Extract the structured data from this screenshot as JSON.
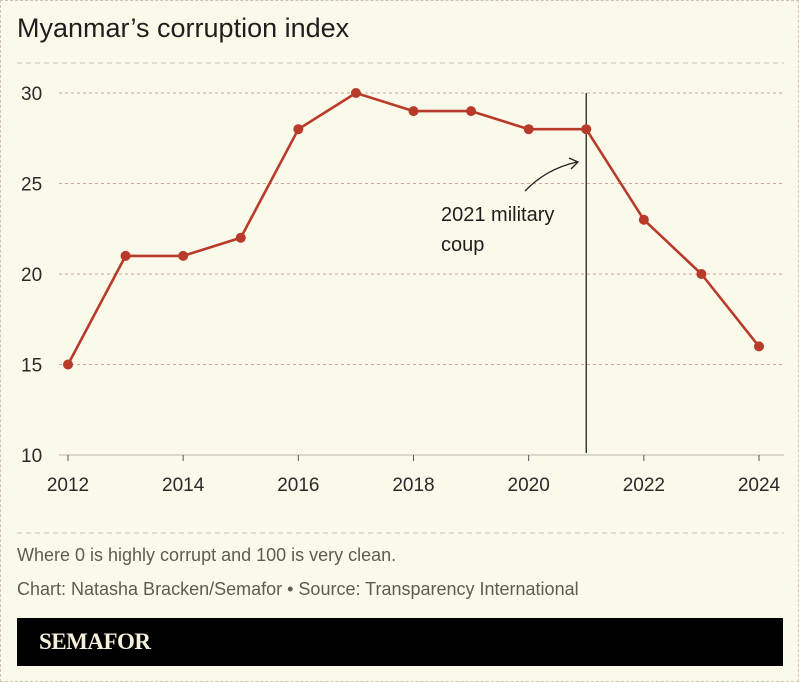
{
  "title": "Myanmar’s corruption index",
  "note": "Where 0 is highly corrupt and 100 is very clean.",
  "credit": "Chart: Natasha Bracken/Semafor • Source: Transparency International",
  "brand": "SEMAFOR",
  "chart_data": {
    "type": "line",
    "x": [
      2012,
      2013,
      2014,
      2015,
      2016,
      2017,
      2018,
      2019,
      2020,
      2021,
      2022,
      2023,
      2024
    ],
    "values": [
      15,
      21,
      21,
      22,
      28,
      30,
      29,
      29,
      28,
      28,
      23,
      20,
      16
    ],
    "xticks": [
      "2012",
      "2014",
      "2016",
      "2018",
      "2020",
      "2022",
      "2024"
    ],
    "yticks": [
      "10",
      "15",
      "20",
      "25",
      "30"
    ],
    "ylim": [
      10,
      30
    ],
    "xlim": [
      2012,
      2024
    ],
    "grid": true,
    "line_color": "#b83a2a",
    "annotation": {
      "x": 2021,
      "lines": [
        "2021 military",
        "coup"
      ]
    }
  }
}
